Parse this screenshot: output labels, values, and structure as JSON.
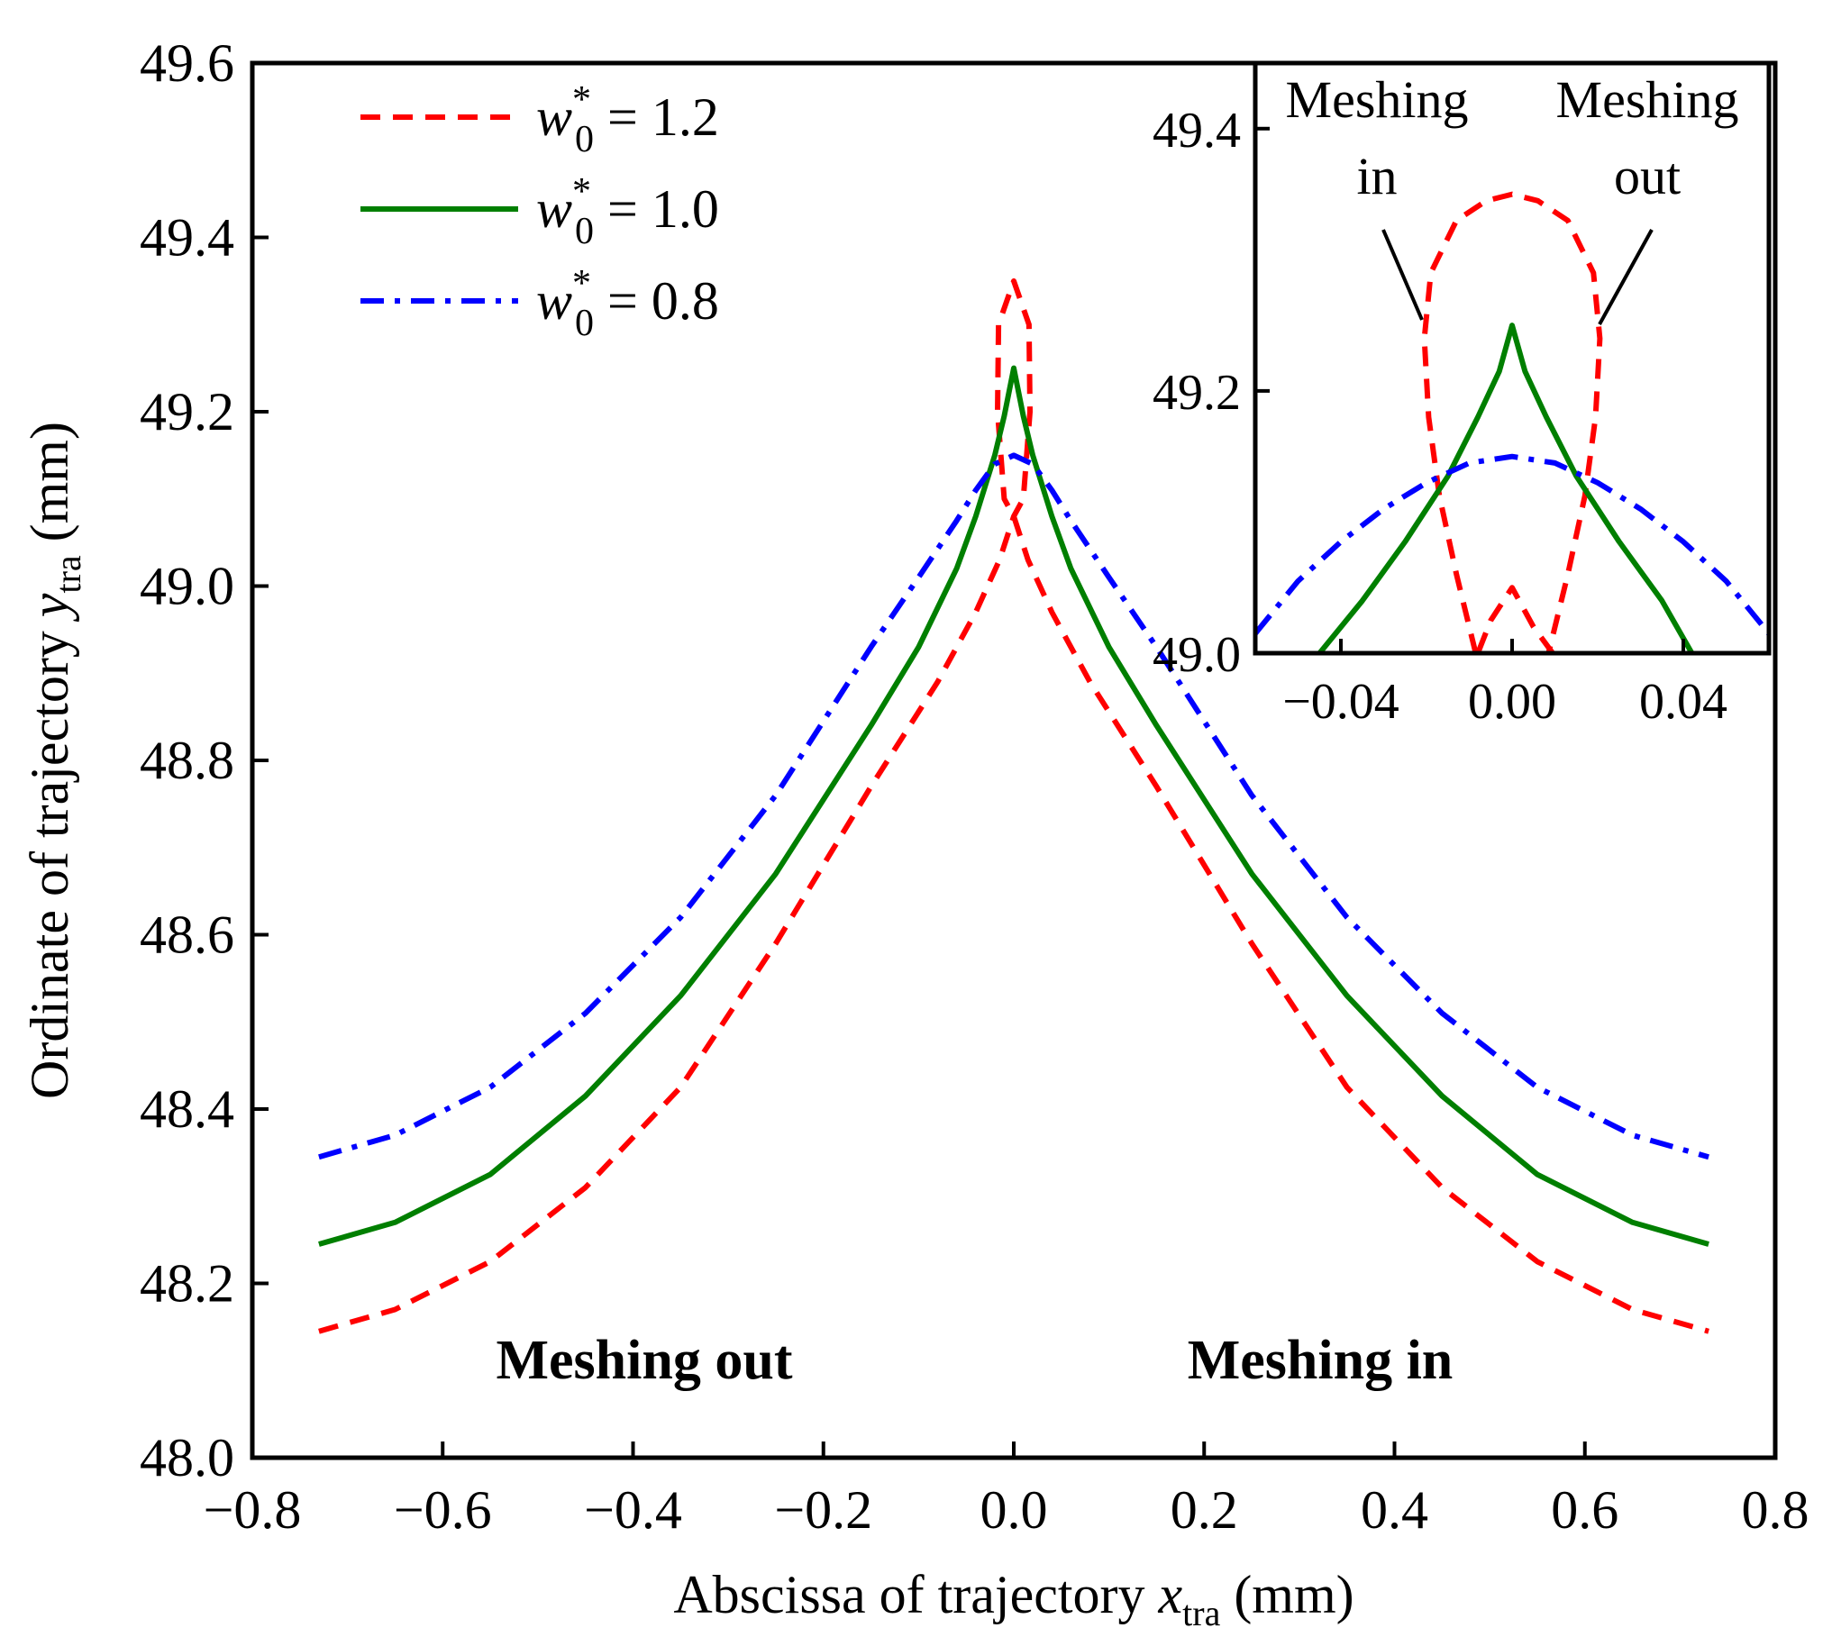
{
  "chart_data": [
    {
      "type": "line",
      "title": "",
      "xlabel_prefix": "Abscissa of trajectory ",
      "xlabel_var": "x",
      "xlabel_sub": "tra",
      "xlabel_unit": " (mm)",
      "ylabel_prefix": "Ordinate of trajectory ",
      "ylabel_var": "y",
      "ylabel_sub": "tra",
      "ylabel_unit": " (mm)",
      "xlim": [
        -0.8,
        0.8
      ],
      "ylim": [
        48.0,
        49.6
      ],
      "xticks": [
        "−0.8",
        "−0.6",
        "−0.4",
        "−0.2",
        "0.0",
        "0.2",
        "0.4",
        "0.6",
        "0.8"
      ],
      "xtick_values": [
        -0.8,
        -0.6,
        -0.4,
        -0.2,
        0.0,
        0.2,
        0.4,
        0.6,
        0.8
      ],
      "yticks": [
        "48.0",
        "48.2",
        "48.4",
        "48.6",
        "48.8",
        "49.0",
        "49.2",
        "49.4",
        "49.6"
      ],
      "ytick_values": [
        48.0,
        48.2,
        48.4,
        48.6,
        48.8,
        49.0,
        49.2,
        49.4,
        49.6
      ],
      "grid": false,
      "legend_position": "top-left",
      "legend_var": "w",
      "legend_sub": "0",
      "legend_sup": "*",
      "series": [
        {
          "legend_value": " = 1.2",
          "color": "#ff0000",
          "style": "dashed",
          "points": [
            [
              -0.73,
              48.145
            ],
            [
              -0.65,
              48.17
            ],
            [
              -0.55,
              48.225
            ],
            [
              -0.45,
              48.31
            ],
            [
              -0.35,
              48.425
            ],
            [
              -0.25,
              48.59
            ],
            [
              -0.15,
              48.77
            ],
            [
              -0.08,
              48.89
            ],
            [
              -0.04,
              48.97
            ],
            [
              -0.015,
              49.03
            ],
            [
              0.0,
              49.08
            ],
            [
              0.01,
              49.1
            ],
            [
              0.017,
              49.2
            ],
            [
              0.016,
              49.3
            ],
            [
              0.0,
              49.35
            ],
            [
              -0.016,
              49.3
            ],
            [
              -0.017,
              49.2
            ],
            [
              -0.01,
              49.1
            ],
            [
              0.0,
              49.08
            ],
            [
              0.015,
              49.03
            ],
            [
              0.04,
              48.97
            ],
            [
              0.08,
              48.89
            ],
            [
              0.15,
              48.77
            ],
            [
              0.25,
              48.59
            ],
            [
              0.35,
              48.425
            ],
            [
              0.45,
              48.31
            ],
            [
              0.55,
              48.225
            ],
            [
              0.65,
              48.17
            ],
            [
              0.73,
              48.145
            ]
          ]
        },
        {
          "legend_value": " = 1.0",
          "color": "#007f00",
          "style": "solid",
          "points": [
            [
              -0.73,
              48.245
            ],
            [
              -0.65,
              48.27
            ],
            [
              -0.55,
              48.325
            ],
            [
              -0.45,
              48.415
            ],
            [
              -0.35,
              48.53
            ],
            [
              -0.25,
              48.67
            ],
            [
              -0.15,
              48.84
            ],
            [
              -0.1,
              48.93
            ],
            [
              -0.06,
              49.02
            ],
            [
              -0.04,
              49.08
            ],
            [
              -0.02,
              49.15
            ],
            [
              -0.01,
              49.195
            ],
            [
              0.0,
              49.25
            ],
            [
              0.01,
              49.195
            ],
            [
              0.02,
              49.15
            ],
            [
              0.04,
              49.08
            ],
            [
              0.06,
              49.02
            ],
            [
              0.1,
              48.93
            ],
            [
              0.15,
              48.84
            ],
            [
              0.25,
              48.67
            ],
            [
              0.35,
              48.53
            ],
            [
              0.45,
              48.415
            ],
            [
              0.55,
              48.325
            ],
            [
              0.65,
              48.27
            ],
            [
              0.73,
              48.245
            ]
          ]
        },
        {
          "legend_value": " = 0.8",
          "color": "#0000ff",
          "style": "dashdot",
          "points": [
            [
              -0.73,
              48.345
            ],
            [
              -0.65,
              48.37
            ],
            [
              -0.55,
              48.425
            ],
            [
              -0.45,
              48.51
            ],
            [
              -0.35,
              48.62
            ],
            [
              -0.25,
              48.76
            ],
            [
              -0.15,
              48.93
            ],
            [
              -0.1,
              49.01
            ],
            [
              -0.06,
              49.075
            ],
            [
              -0.04,
              49.11
            ],
            [
              -0.02,
              49.14
            ],
            [
              0.0,
              49.15
            ],
            [
              0.02,
              49.14
            ],
            [
              0.04,
              49.11
            ],
            [
              0.06,
              49.075
            ],
            [
              0.1,
              49.01
            ],
            [
              0.15,
              48.93
            ],
            [
              0.25,
              48.76
            ],
            [
              0.35,
              48.62
            ],
            [
              0.45,
              48.51
            ],
            [
              0.55,
              48.425
            ],
            [
              0.65,
              48.37
            ],
            [
              0.73,
              48.345
            ]
          ]
        }
      ],
      "annotations": {
        "left": "Meshing out",
        "right": "Meshing in"
      }
    },
    {
      "type": "line",
      "role": "inset",
      "xlim": [
        -0.06,
        0.06
      ],
      "ylim": [
        49.0,
        49.45
      ],
      "xticks": [
        "−0.04",
        "0.00",
        "0.04"
      ],
      "xtick_values": [
        -0.04,
        0.0,
        0.04
      ],
      "yticks": [
        "49.0",
        "49.2",
        "49.4"
      ],
      "ytick_values": [
        49.0,
        49.2,
        49.4
      ],
      "series": [
        {
          "color": "#ff0000",
          "style": "dashed",
          "points": [
            [
              0.0095,
              49.0
            ],
            [
              0.005,
              49.02
            ],
            [
              0.0,
              49.05
            ],
            [
              -0.005,
              49.025
            ],
            [
              -0.008,
              49.0
            ]
          ],
          "points_outer": [
            [
              -0.0085,
              49.0
            ],
            [
              -0.013,
              49.06
            ],
            [
              -0.017,
              49.12
            ],
            [
              -0.0195,
              49.18
            ],
            [
              -0.0205,
              49.24
            ],
            [
              -0.019,
              49.29
            ],
            [
              -0.013,
              49.33
            ],
            [
              -0.006,
              49.345
            ],
            [
              0.0,
              49.35
            ],
            [
              0.006,
              49.345
            ],
            [
              0.013,
              49.33
            ],
            [
              0.019,
              49.29
            ],
            [
              0.0205,
              49.24
            ],
            [
              0.0195,
              49.18
            ],
            [
              0.017,
              49.12
            ],
            [
              0.013,
              49.06
            ],
            [
              0.0085,
              49.0
            ]
          ]
        },
        {
          "color": "#007f00",
          "style": "solid",
          "points": [
            [
              -0.045,
              49.0
            ],
            [
              -0.035,
              49.04
            ],
            [
              -0.025,
              49.085
            ],
            [
              -0.015,
              49.135
            ],
            [
              -0.008,
              49.18
            ],
            [
              -0.003,
              49.215
            ],
            [
              0.0,
              49.25
            ],
            [
              0.003,
              49.215
            ],
            [
              0.008,
              49.18
            ],
            [
              0.015,
              49.135
            ],
            [
              0.025,
              49.085
            ],
            [
              0.035,
              49.04
            ],
            [
              0.042,
              49.0
            ]
          ]
        },
        {
          "color": "#0000ff",
          "style": "dashdot",
          "points": [
            [
              -0.06,
              49.015
            ],
            [
              -0.05,
              49.055
            ],
            [
              -0.04,
              49.085
            ],
            [
              -0.03,
              49.11
            ],
            [
              -0.02,
              49.13
            ],
            [
              -0.01,
              49.145
            ],
            [
              0.0,
              49.15
            ],
            [
              0.01,
              49.145
            ],
            [
              0.02,
              49.13
            ],
            [
              0.03,
              49.11
            ],
            [
              0.04,
              49.085
            ],
            [
              0.05,
              49.055
            ],
            [
              0.06,
              49.015
            ]
          ]
        }
      ],
      "annotations": {
        "left_line1": "Meshing",
        "left_line2": "in",
        "right_line1": "Meshing",
        "right_line2": "out"
      }
    }
  ]
}
